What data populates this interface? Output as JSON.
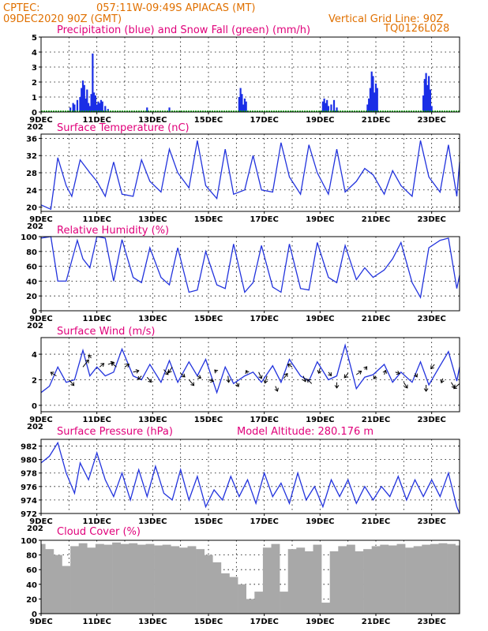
{
  "header": {
    "source": "CPTEC:",
    "location": "057:11W-09:49S   APIACAS (MT)",
    "date": "09DEC2020 90Z (GMT)",
    "grid_note": "Vertical Grid Line: 90Z",
    "model_code": "TQ0126L028"
  },
  "colors": {
    "header": "#e07000",
    "title": "#e0007a",
    "line": "#2233dd",
    "precip": "#1a2ee6",
    "snow": "#00aa00",
    "cloud": "#a8a8a8"
  },
  "date_labels": [
    "9DEC",
    "11DEC",
    "13DEC",
    "15DEC",
    "17DEC",
    "19DEC",
    "21DEC",
    "23DEC"
  ],
  "year_stub": "202",
  "chart_data": [
    {
      "id": "precip",
      "type": "bar",
      "title": "Precipitation (blue) and Snow Fall (green) (mm/h)",
      "ylim": [
        0,
        5
      ],
      "yticks": [
        0,
        1,
        2,
        3,
        4,
        5
      ],
      "xlim": [
        9,
        24
      ],
      "series": [
        {
          "name": "Precipitation",
          "color": "#1a2ee6",
          "x": [
            10.05,
            10.15,
            10.2,
            10.3,
            10.4,
            10.45,
            10.5,
            10.55,
            10.6,
            10.65,
            10.7,
            10.75,
            10.8,
            10.85,
            10.9,
            10.95,
            11.0,
            11.05,
            11.1,
            11.15,
            11.2,
            11.3,
            11.4,
            12.8,
            13.6,
            16.1,
            16.15,
            16.2,
            16.25,
            16.3,
            16.35,
            19.1,
            19.15,
            19.2,
            19.25,
            19.3,
            19.4,
            19.5,
            19.6,
            20.7,
            20.75,
            20.8,
            20.85,
            20.9,
            20.95,
            21.0,
            21.05,
            22.7,
            22.75,
            22.8,
            22.85,
            22.9,
            22.95,
            23.0
          ],
          "values": [
            0.3,
            0.6,
            0.5,
            0.8,
            1.0,
            1.6,
            2.1,
            1.8,
            0.9,
            1.5,
            0.6,
            0.4,
            1.2,
            3.9,
            1.3,
            1.1,
            0.5,
            0.7,
            0.6,
            0.8,
            0.7,
            0.4,
            0.2,
            0.3,
            0.3,
            1.0,
            1.6,
            1.2,
            0.5,
            0.9,
            0.7,
            0.7,
            0.9,
            0.6,
            0.8,
            0.4,
            0.5,
            0.8,
            0.3,
            0.5,
            0.9,
            1.6,
            2.7,
            2.4,
            1.3,
            1.9,
            1.6,
            1.1,
            2.2,
            2.6,
            1.8,
            2.4,
            1.5,
            0.4
          ]
        },
        {
          "name": "Snow Fall",
          "color": "#00aa00",
          "x": [
            9,
            24
          ],
          "values": [
            0,
            0
          ]
        }
      ]
    },
    {
      "id": "temp",
      "type": "line",
      "title": "Surface Temperature (nC)",
      "ylim": [
        19,
        37
      ],
      "yticks": [
        20,
        24,
        28,
        32,
        36
      ],
      "xlim": [
        9,
        24
      ],
      "x": [
        9.0,
        9.35,
        9.6,
        9.9,
        10.1,
        10.4,
        10.75,
        11.0,
        11.3,
        11.6,
        11.9,
        12.3,
        12.6,
        12.9,
        13.3,
        13.6,
        13.9,
        14.3,
        14.6,
        14.9,
        15.3,
        15.6,
        15.9,
        16.3,
        16.6,
        16.9,
        17.3,
        17.6,
        17.9,
        18.3,
        18.6,
        18.9,
        19.3,
        19.6,
        19.9,
        20.3,
        20.6,
        20.9,
        21.3,
        21.6,
        21.9,
        22.3,
        22.6,
        22.9,
        23.3,
        23.6,
        23.9,
        24.0
      ],
      "values": [
        20.5,
        19.5,
        31.5,
        25.0,
        22.5,
        31.0,
        28.0,
        26.0,
        22.5,
        30.5,
        23.0,
        22.5,
        31.0,
        26.0,
        23.5,
        33.5,
        28.0,
        24.5,
        35.5,
        25.0,
        22.0,
        33.5,
        23.0,
        24.0,
        32.0,
        24.0,
        23.5,
        35.0,
        27.0,
        23.0,
        34.5,
        28.0,
        23.0,
        33.5,
        23.5,
        26.0,
        29.0,
        27.5,
        23.0,
        28.5,
        25.0,
        22.5,
        35.5,
        27.0,
        23.5,
        34.5,
        22.5,
        30.5
      ]
    },
    {
      "id": "rh",
      "type": "line",
      "title": "Relative Humidity (%)",
      "ylim": [
        0,
        100
      ],
      "yticks": [
        0,
        20,
        40,
        60,
        80,
        100
      ],
      "xlim": [
        9,
        24
      ],
      "x": [
        9.0,
        9.35,
        9.6,
        9.9,
        10.3,
        10.5,
        10.75,
        11.0,
        11.3,
        11.6,
        11.9,
        12.3,
        12.6,
        12.9,
        13.3,
        13.6,
        13.9,
        14.3,
        14.6,
        14.9,
        15.3,
        15.6,
        15.9,
        16.3,
        16.6,
        16.9,
        17.3,
        17.6,
        17.9,
        18.3,
        18.6,
        18.9,
        19.3,
        19.6,
        19.9,
        20.3,
        20.6,
        20.9,
        21.3,
        21.6,
        21.9,
        22.3,
        22.6,
        22.9,
        23.3,
        23.6,
        23.9,
        24.0
      ],
      "values": [
        98,
        100,
        40,
        40,
        95,
        70,
        58,
        100,
        98,
        40,
        96,
        45,
        38,
        85,
        45,
        35,
        85,
        25,
        28,
        80,
        35,
        30,
        90,
        25,
        38,
        88,
        32,
        25,
        90,
        30,
        28,
        92,
        45,
        38,
        88,
        42,
        58,
        45,
        55,
        70,
        92,
        38,
        18,
        85,
        95,
        98,
        30,
        48
      ]
    },
    {
      "id": "wind",
      "type": "line",
      "title": "Surface Wind (m/s)",
      "ylim": [
        -0.5,
        5.3
      ],
      "yticks": [
        0,
        2,
        4
      ],
      "xlim": [
        9,
        24
      ],
      "x": [
        9.0,
        9.3,
        9.6,
        9.9,
        10.2,
        10.5,
        10.75,
        11.0,
        11.3,
        11.6,
        11.9,
        12.3,
        12.6,
        12.9,
        13.3,
        13.6,
        13.9,
        14.3,
        14.6,
        14.9,
        15.3,
        15.6,
        15.9,
        16.3,
        16.6,
        16.9,
        17.3,
        17.6,
        17.9,
        18.3,
        18.6,
        18.9,
        19.3,
        19.6,
        19.9,
        20.3,
        20.6,
        20.9,
        21.3,
        21.6,
        21.9,
        22.3,
        22.6,
        22.9,
        23.3,
        23.6,
        23.9,
        24.0
      ],
      "values": [
        1.0,
        1.5,
        3.0,
        1.8,
        2.0,
        4.3,
        2.3,
        3.0,
        2.3,
        2.6,
        4.4,
        2.3,
        2.0,
        3.2,
        1.8,
        3.5,
        1.8,
        3.4,
        2.3,
        3.6,
        1.0,
        3.0,
        1.7,
        2.3,
        2.6,
        1.8,
        3.1,
        1.8,
        3.6,
        2.3,
        1.9,
        3.4,
        2.0,
        2.3,
        4.7,
        1.3,
        2.2,
        2.4,
        3.2,
        1.8,
        2.6,
        1.8,
        3.4,
        1.6,
        3.1,
        4.2,
        1.9,
        3.0
      ],
      "arrows_x": [
        9.55,
        10.0,
        10.5,
        10.8,
        11.1,
        11.4,
        11.7,
        12.0,
        12.3,
        12.6,
        12.8,
        13.4,
        13.7,
        14.0,
        14.3,
        14.6,
        15.0,
        15.3,
        15.7,
        16.0,
        16.4,
        16.8,
        17.1,
        17.4,
        17.7,
        18.0,
        18.4,
        18.7,
        19.0,
        19.3,
        19.6,
        20.0,
        20.3,
        20.6,
        21.0,
        21.3,
        21.7,
        22.0,
        22.4,
        22.8,
        23.1,
        23.4,
        23.7,
        24.0
      ],
      "arrows_y": [
        2.3,
        2.0,
        3.0,
        3.7,
        3.0,
        3.2,
        3.0,
        3.0,
        2.6,
        2.3,
        2.2,
        2.8,
        3.0,
        2.5,
        2.0,
        2.3,
        2.0,
        2.6,
        2.3,
        1.8,
        2.5,
        2.6,
        2.3,
        1.5,
        2.1,
        3.0,
        2.3,
        1.7,
        2.9,
        2.6,
        1.8,
        2.5,
        2.4,
        2.8,
        2.3,
        2.4,
        2.6,
        1.8,
        2.5,
        1.6,
        3.2,
        2.1,
        1.8,
        1.7
      ],
      "arrows_u": [
        -0.8,
        0.7,
        0.8,
        -0.4,
        0.6,
        0.8,
        -0.7,
        0.6,
        0.8,
        -0.5,
        0.6,
        0.6,
        -0.5,
        0.6,
        0.7,
        0.5,
        0.7,
        -0.3,
        0.1,
        0.3,
        -0.2,
        0.4,
        -0.3,
        0.3,
        0.5,
        -0.6,
        0.3,
        -0.6,
        -0.2,
        0.4,
        0.0,
        -0.5,
        0.7,
        0.3,
        -0.3,
        0.2,
        0.6,
        0.5,
        0.3,
        0.0,
        -0.5,
        -0.2,
        0.5,
        -0.8
      ],
      "arrows_v": [
        0.5,
        -0.8,
        1.0,
        0.4,
        0.5,
        0.3,
        0.6,
        0.4,
        0.2,
        -0.5,
        -0.7,
        -0.7,
        -0.8,
        -0.5,
        -0.8,
        -0.3,
        -0.2,
        0.3,
        -0.9,
        -0.6,
        0.4,
        -0.9,
        -1.0,
        -0.7,
        0.7,
        0.4,
        -0.8,
        0.6,
        -0.7,
        -0.5,
        -0.8,
        -0.6,
        0.5,
        0.4,
        -0.4,
        0.6,
        -0.2,
        -0.8,
        -0.5,
        -0.9,
        -0.6,
        -0.6,
        -0.8,
        -0.7
      ]
    },
    {
      "id": "pressure",
      "type": "line",
      "title": "Surface Pressure (hPa)",
      "subtitle": "Model Altitude: 280.176 m",
      "ylim": [
        972,
        983
      ],
      "yticks": [
        972,
        974,
        976,
        978,
        980,
        982
      ],
      "xlim": [
        9,
        24
      ],
      "x": [
        9.0,
        9.3,
        9.6,
        9.9,
        10.2,
        10.4,
        10.7,
        11.0,
        11.3,
        11.6,
        11.9,
        12.2,
        12.5,
        12.8,
        13.1,
        13.4,
        13.7,
        14.0,
        14.3,
        14.6,
        14.9,
        15.2,
        15.5,
        15.8,
        16.1,
        16.4,
        16.7,
        17.0,
        17.3,
        17.6,
        17.9,
        18.2,
        18.5,
        18.8,
        19.1,
        19.4,
        19.7,
        20.0,
        20.3,
        20.6,
        20.9,
        21.2,
        21.5,
        21.8,
        22.1,
        22.4,
        22.7,
        23.0,
        23.3,
        23.6,
        23.9,
        24.0
      ],
      "values": [
        979.5,
        980.5,
        982.5,
        978.0,
        975.0,
        979.5,
        977.0,
        981.0,
        977.0,
        974.5,
        978.0,
        974.0,
        978.5,
        974.5,
        979.0,
        975.0,
        974.0,
        978.5,
        974.0,
        977.5,
        973.0,
        975.5,
        974.0,
        977.5,
        974.5,
        977.0,
        973.5,
        978.0,
        974.5,
        976.5,
        973.5,
        978.0,
        974.0,
        976.0,
        973.0,
        977.0,
        974.5,
        977.0,
        973.5,
        976.0,
        974.0,
        976.0,
        974.5,
        977.5,
        974.0,
        977.0,
        974.5,
        977.0,
        974.5,
        978.0,
        973.0,
        972.0
      ]
    },
    {
      "id": "cloud",
      "type": "bar",
      "title": "Cloud Cover (%)",
      "ylim": [
        0,
        100
      ],
      "yticks": [
        0,
        20,
        40,
        60,
        80,
        100
      ],
      "xlim": [
        9,
        24
      ],
      "x": [
        9.0,
        9.3,
        9.6,
        9.9,
        10.2,
        10.5,
        10.8,
        11.1,
        11.4,
        11.7,
        12.0,
        12.3,
        12.6,
        12.9,
        13.2,
        13.5,
        13.8,
        14.1,
        14.4,
        14.7,
        15.0,
        15.3,
        15.6,
        15.9,
        16.2,
        16.5,
        16.8,
        17.1,
        17.4,
        17.7,
        18.0,
        18.3,
        18.6,
        18.9,
        19.2,
        19.5,
        19.8,
        20.1,
        20.4,
        20.7,
        21.0,
        21.3,
        21.6,
        21.9,
        22.2,
        22.5,
        22.8,
        23.1,
        23.4,
        23.7,
        24.0
      ],
      "values": [
        95,
        88,
        80,
        65,
        92,
        96,
        90,
        95,
        94,
        97,
        95,
        96,
        94,
        95,
        93,
        94,
        92,
        90,
        92,
        88,
        80,
        70,
        55,
        50,
        40,
        20,
        30,
        90,
        95,
        30,
        88,
        90,
        85,
        94,
        15,
        85,
        92,
        94,
        85,
        88,
        92,
        94,
        93,
        95,
        90,
        92,
        94,
        95,
        96,
        95,
        93
      ]
    }
  ]
}
